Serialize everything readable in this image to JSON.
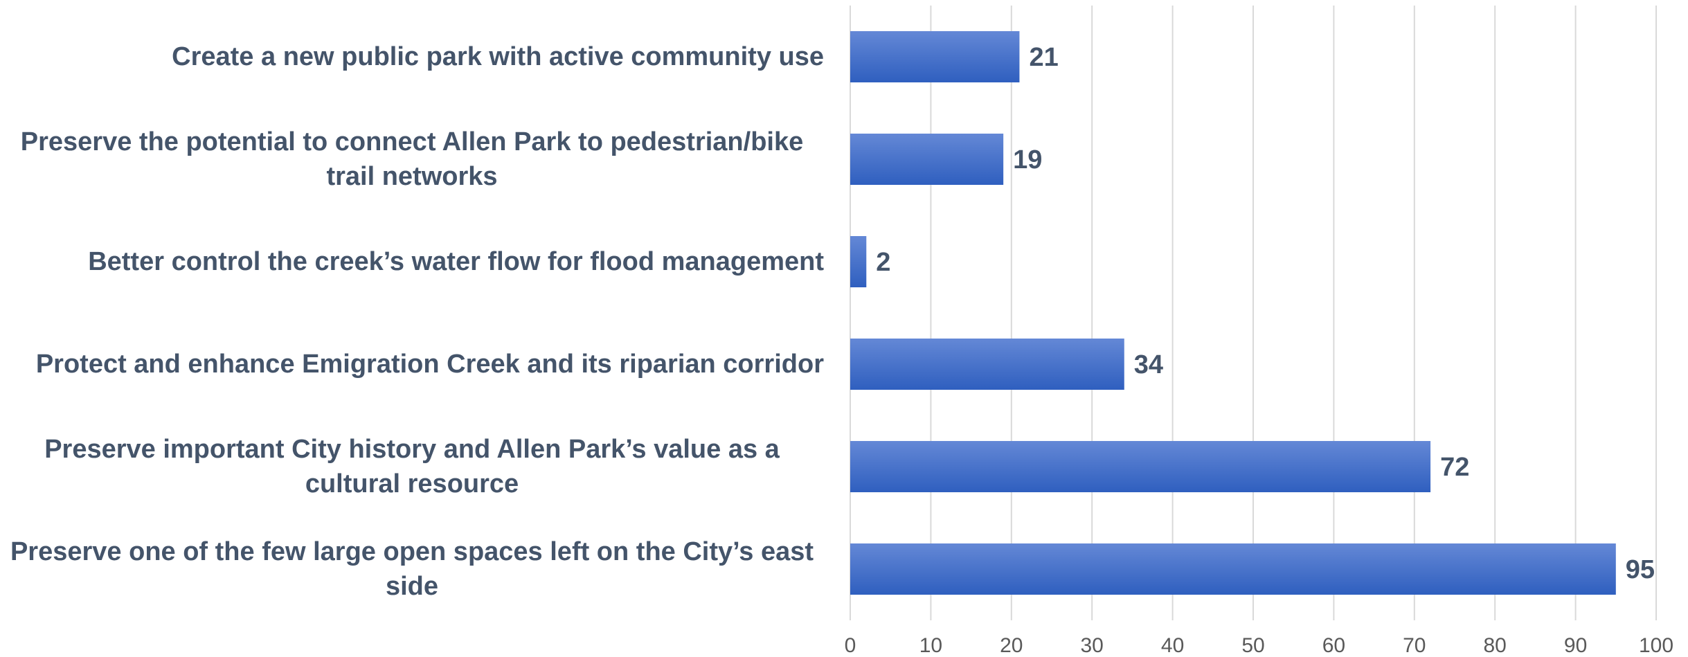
{
  "chart_data": {
    "type": "bar",
    "orientation": "horizontal",
    "categories": [
      "Create a new public park with active community use",
      "Preserve the potential to connect Allen Park to pedestrian/bike trail networks",
      "Better control the creek’s water flow for flood management",
      "Protect and enhance Emigration Creek and its riparian corridor",
      "Preserve important City history and Allen Park’s value as a cultural resource",
      "Preserve one of the few large open spaces left on the City’s east side"
    ],
    "values": [
      21,
      19,
      2,
      34,
      72,
      95
    ],
    "xlim": [
      0,
      100
    ],
    "xticks": [
      "0",
      "10",
      "20",
      "30",
      "40",
      "50",
      "60",
      "70",
      "80",
      "90",
      "100"
    ],
    "grid": "vertical",
    "bar_color": "#3a68c4",
    "bar_color_light": "#5b85d6",
    "label_color": "#44546a"
  }
}
